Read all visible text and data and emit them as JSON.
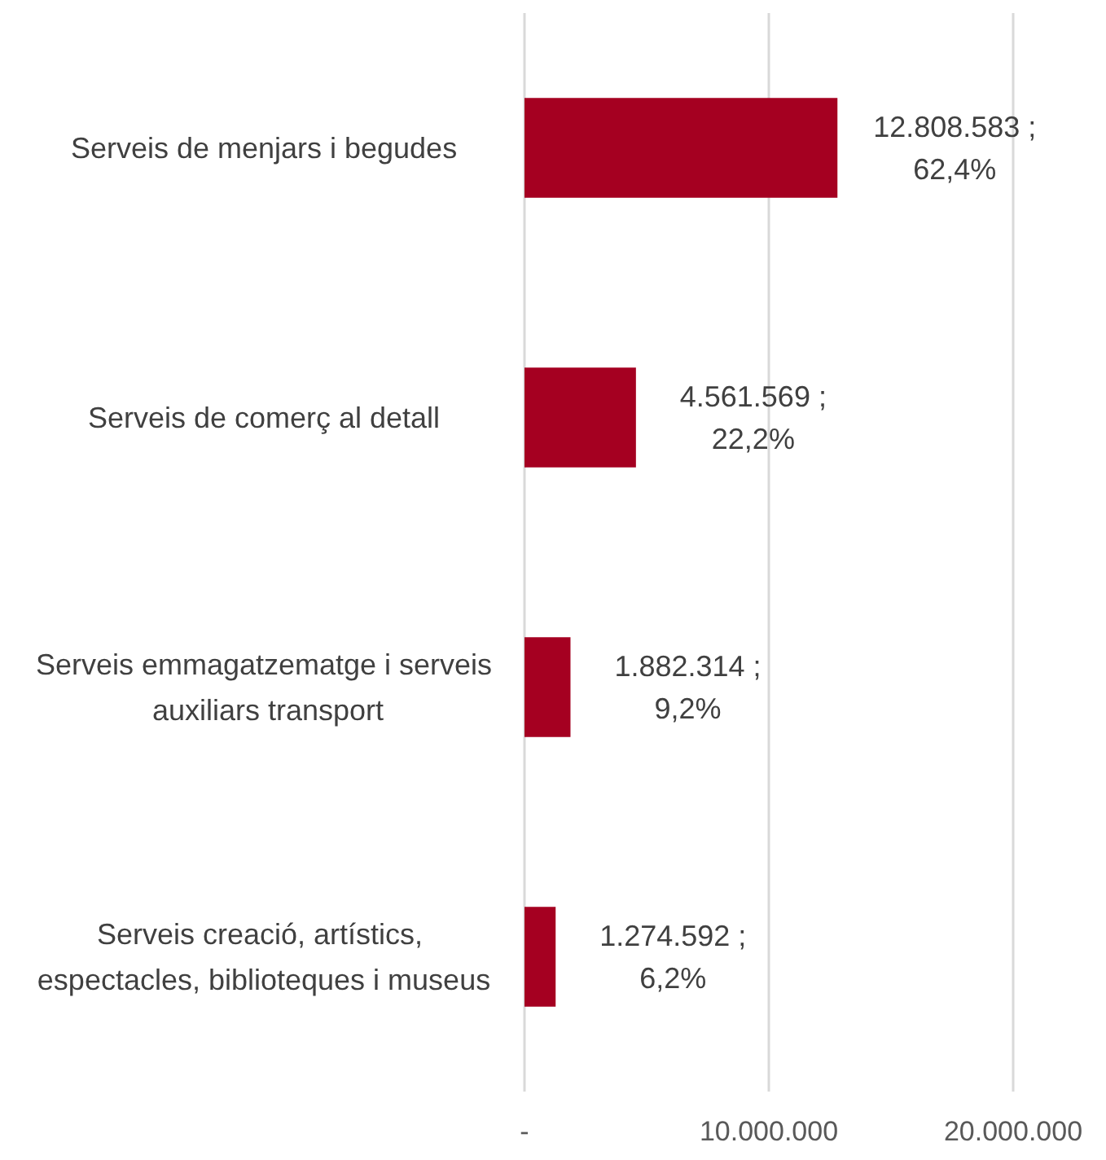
{
  "chart_data": {
    "type": "bar",
    "orientation": "horizontal",
    "categories": [
      "Serveis de menjars i begudes",
      "Serveis de comerç al detall",
      "Serveis emmagatzematge i serveis auxiliars transport",
      "Serveis creació, artístics, espectacles, biblioteques i museus"
    ],
    "values": [
      12808583,
      4561569,
      1882314,
      1274592
    ],
    "value_labels": [
      "12.808.583 ; 62,4%",
      "4.561.569 ; 22,2%",
      "1.882.314 ; 9,2%",
      "1.274.592 ; 6,2%"
    ],
    "color": "#a50021",
    "xlim": [
      0,
      20000000
    ],
    "xticks": [
      {
        "value": 0,
        "label": "-"
      },
      {
        "value": 10000000,
        "label": "10.000.000"
      },
      {
        "value": 20000000,
        "label": "20.000.000"
      }
    ],
    "grid": "x"
  }
}
